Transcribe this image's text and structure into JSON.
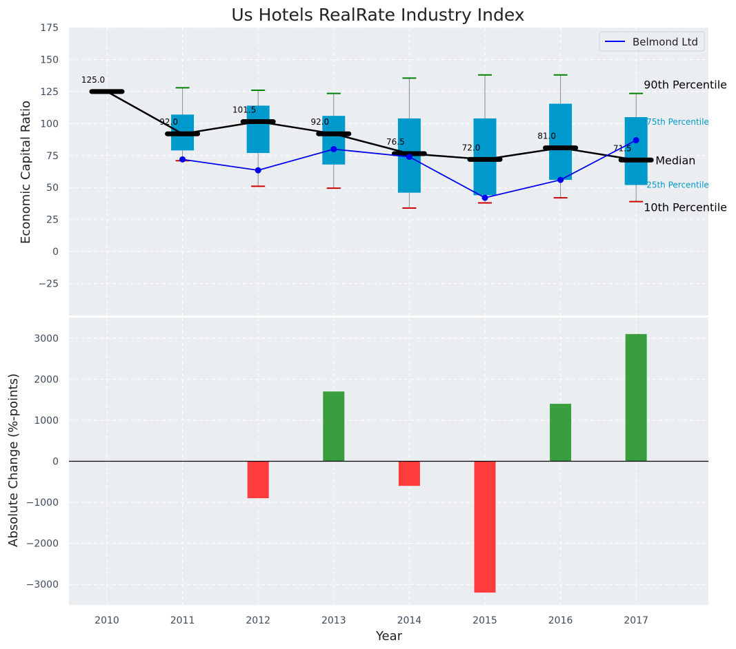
{
  "chart_data": [
    {
      "type": "box",
      "title": "Us Hotels RealRate Industry Index",
      "xlabel": "",
      "ylabel": "Economic Capital Ratio",
      "ylim": [
        -50,
        175
      ],
      "yticks": [
        -25,
        0,
        25,
        50,
        75,
        100,
        125,
        150,
        175
      ],
      "ytick_labels": [
        "−25",
        "0",
        "25",
        "50",
        "75",
        "100",
        "125",
        "150",
        "175"
      ],
      "categories": [
        "2010",
        "2011",
        "2012",
        "2013",
        "2014",
        "2015",
        "2016",
        "2017"
      ],
      "grid": true,
      "legend": {
        "position": "top-right",
        "entries": [
          "Belmond Ltd"
        ]
      },
      "percentiles": {
        "p90": [
          125,
          128,
          126,
          123.5,
          135.5,
          138,
          138,
          123.5
        ],
        "p75": [
          125,
          107,
          114,
          106,
          104,
          104,
          115.5,
          105
        ],
        "median": [
          125,
          92,
          101.5,
          92,
          76.5,
          72,
          81,
          71.5
        ],
        "p25": [
          125,
          79,
          77,
          68,
          46,
          44,
          56,
          52
        ],
        "p10": [
          125,
          71,
          51,
          49.5,
          34,
          38,
          42,
          39
        ]
      },
      "median_labels": [
        "125.0",
        "92.0",
        "101.5",
        "92.0",
        "76.5",
        "72.0",
        "81.0",
        "71.5"
      ],
      "series": [
        {
          "name": "Belmond Ltd",
          "values": [
            null,
            72,
            63.5,
            80,
            74,
            42,
            56,
            87
          ],
          "color": "#0000ee"
        }
      ],
      "annotations": {
        "p90": "90th Percentile",
        "p75": "75th Percentile",
        "median": "Median",
        "p25": "25th Percentile",
        "p10": "10th Percentile"
      },
      "colors": {
        "box": "#0099cc",
        "median": "#000000",
        "whisker_top": "#008000",
        "whisker_bottom": "#cc0000",
        "background": "#eaeef0"
      }
    },
    {
      "type": "bar",
      "xlabel": "Year",
      "ylabel": "Absolute Change (%-points)",
      "ylim": [
        -3500,
        3500
      ],
      "yticks": [
        -3000,
        -2000,
        -1000,
        0,
        1000,
        2000,
        3000
      ],
      "ytick_labels": [
        "−3000",
        "−2000",
        "−1000",
        "0",
        "1000",
        "2000",
        "3000"
      ],
      "categories": [
        "2010",
        "2011",
        "2012",
        "2013",
        "2014",
        "2015",
        "2016",
        "2017"
      ],
      "values": [
        null,
        null,
        -900,
        1700,
        -600,
        -3200,
        1400,
        3100
      ],
      "colors": {
        "positive": "#3a9e3e",
        "negative": "#ff3b3b",
        "zero_line": "#000000"
      }
    }
  ]
}
